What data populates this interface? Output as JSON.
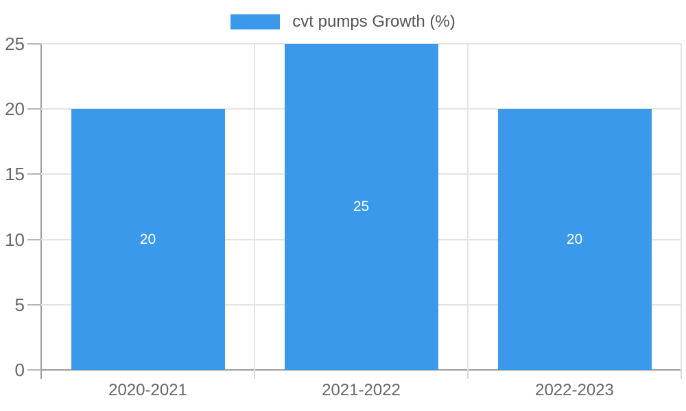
{
  "legend": {
    "label": "cvt pumps Growth (%)"
  },
  "chart_data": {
    "type": "bar",
    "title": "",
    "xlabel": "",
    "ylabel": "",
    "categories": [
      "2020-2021",
      "2021-2022",
      "2022-2023"
    ],
    "series": [
      {
        "name": "cvt pumps Growth (%)",
        "values": [
          20,
          25,
          20
        ]
      }
    ],
    "data_labels": [
      "20",
      "25",
      "20"
    ],
    "yticks": [
      0,
      5,
      10,
      15,
      20,
      25
    ],
    "ylim": [
      0,
      25
    ],
    "grid": true,
    "legend_position": "top",
    "colors": {
      "bar": "#3B99EC",
      "gridline": "#E4E4E4",
      "axis": "#9E9E9E",
      "tick": "#B5B5B5",
      "tick_label": "#666666",
      "legend_text": "#555555",
      "bar_value_label": "#FFFFFF"
    }
  }
}
